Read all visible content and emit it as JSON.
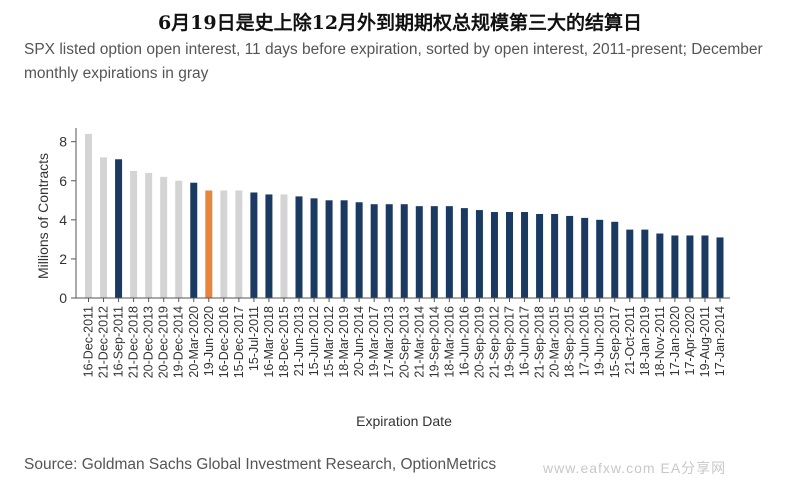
{
  "title": "6月19日是史上除12月外到期期权总规模第三大的结算日",
  "subtitle": "SPX listed option open interest, 11 days before expiration, sorted by open interest, 2011-present; December monthly expirations in gray",
  "source": "Source: Goldman Sachs Global Investment Research, OptionMetrics",
  "watermark": "www.eafxw.com   EA分享网",
  "colors": {
    "navy": "#1b3a62",
    "gray": "#d4d4d4",
    "orange": "#e8843b",
    "axis": "#555555",
    "text": "#333333"
  },
  "chart_data": {
    "type": "bar",
    "xlabel": "Expiration Date",
    "ylabel": "Millions of Contracts",
    "ylim": [
      0,
      8.7
    ],
    "yticks": [
      0,
      2,
      4,
      6,
      8
    ],
    "grid": false,
    "legend": "none",
    "categories": [
      "16-Dec-2011",
      "21-Dec-2012",
      "16-Sep-2011",
      "21-Dec-2018",
      "20-Dec-2013",
      "20-Dec-2019",
      "19-Dec-2014",
      "20-Mar-2020",
      "19-Jun-2020",
      "16-Dec-2016",
      "15-Dec-2017",
      "15-Jul-2011",
      "16-Mar-2018",
      "18-Dec-2015",
      "21-Jun-2013",
      "15-Jun-2012",
      "15-Mar-2012",
      "18-Mar-2019",
      "20-Jun-2014",
      "19-Mar-2017",
      "17-Mar-2013",
      "20-Sep-2013",
      "21-Mar-2014",
      "19-Sep-2014",
      "18-Mar-2016",
      "16-Jun-2016",
      "20-Sep-2019",
      "21-Sep-2012",
      "19-Sep-2017",
      "16-Jun-2017",
      "21-Sep-2018",
      "20-Mar-2015",
      "18-Sep-2015",
      "17-Jun-2016",
      "19-Jun-2015",
      "15-Sep-2017",
      "21-Oct-2011",
      "18-Jan-2019",
      "18-Nov-2011",
      "17-Jan-2020",
      "17-Apr-2020",
      "19-Aug-2011",
      "17-Jan-2014"
    ],
    "values": [
      8.4,
      7.2,
      7.1,
      6.5,
      6.4,
      6.2,
      6.0,
      5.9,
      5.5,
      5.5,
      5.5,
      5.4,
      5.3,
      5.3,
      5.2,
      5.1,
      5.0,
      5.0,
      4.9,
      4.8,
      4.8,
      4.8,
      4.7,
      4.7,
      4.7,
      4.6,
      4.5,
      4.4,
      4.4,
      4.4,
      4.3,
      4.3,
      4.2,
      4.1,
      4.0,
      3.9,
      3.5,
      3.5,
      3.3,
      3.2,
      3.2,
      3.2,
      3.1
    ],
    "bar_colors": [
      "gray",
      "gray",
      "navy",
      "gray",
      "gray",
      "gray",
      "gray",
      "navy",
      "orange",
      "gray",
      "gray",
      "navy",
      "navy",
      "gray",
      "navy",
      "navy",
      "navy",
      "navy",
      "navy",
      "navy",
      "navy",
      "navy",
      "navy",
      "navy",
      "navy",
      "navy",
      "navy",
      "navy",
      "navy",
      "navy",
      "navy",
      "navy",
      "navy",
      "navy",
      "navy",
      "navy",
      "navy",
      "navy",
      "navy",
      "navy",
      "navy",
      "navy",
      "navy"
    ]
  }
}
